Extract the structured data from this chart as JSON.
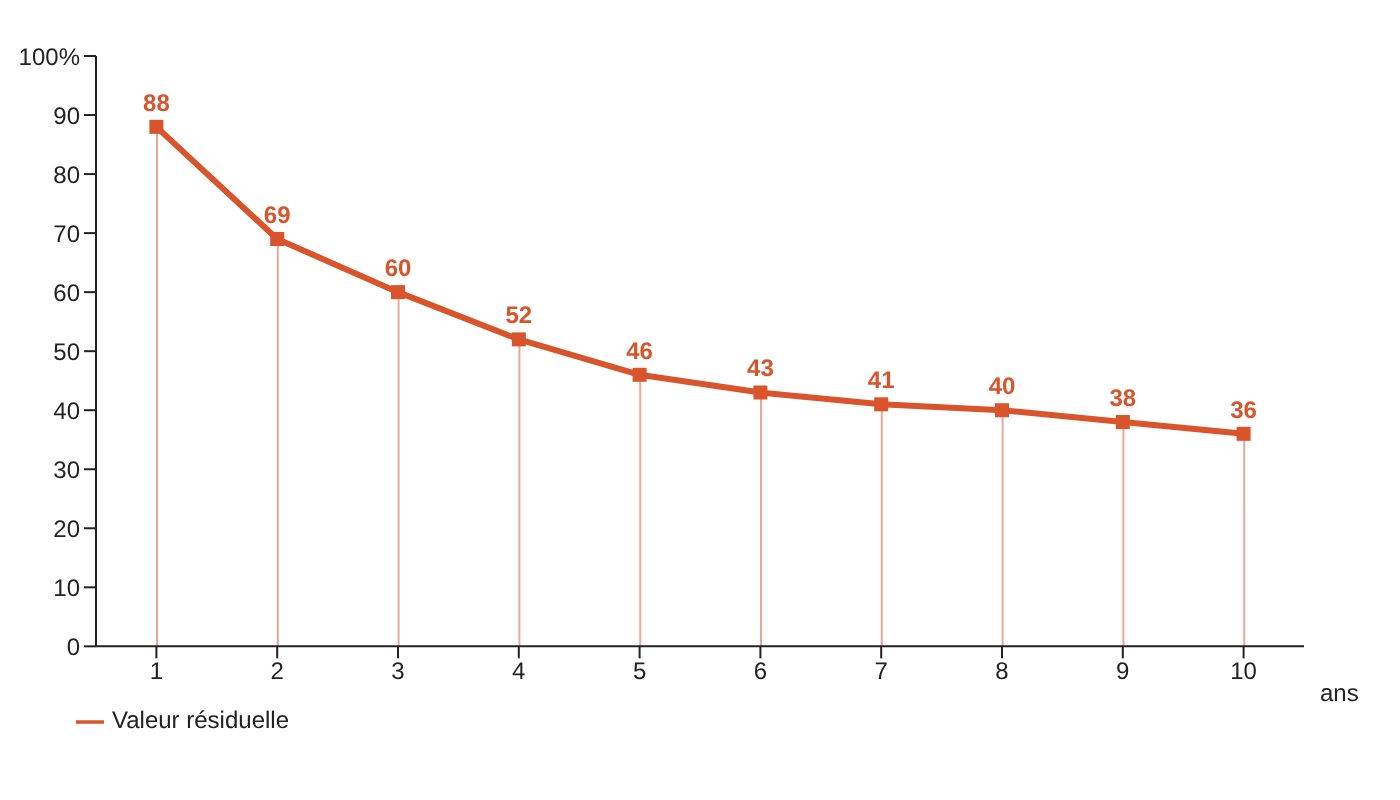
{
  "chart_data": {
    "type": "line",
    "categories": [
      "1",
      "2",
      "3",
      "4",
      "5",
      "6",
      "7",
      "8",
      "9",
      "10"
    ],
    "xlabel": "ans",
    "series": [
      {
        "type": "bar",
        "color": "#eba898",
        "values": [
          88,
          69,
          60,
          52,
          46,
          43,
          41,
          40,
          38,
          36
        ]
      },
      {
        "name": "Valeur résiduelle",
        "color": "#d9542b",
        "values": [
          88,
          69,
          60,
          52,
          46,
          43,
          41,
          40,
          38,
          36
        ],
        "value_labels": [
          "88",
          "69",
          "60",
          "52",
          "46",
          "43",
          "41",
          "40",
          "38",
          "36"
        ]
      }
    ],
    "ylim": [
      0,
      100
    ],
    "yticks": [
      0,
      10,
      20,
      30,
      40,
      50,
      60,
      70,
      80,
      90,
      {
        "value": 100,
        "label": "100%"
      }
    ],
    "marker": "square",
    "grid": false,
    "legend": "bottom left",
    "line_style": "solid"
  }
}
